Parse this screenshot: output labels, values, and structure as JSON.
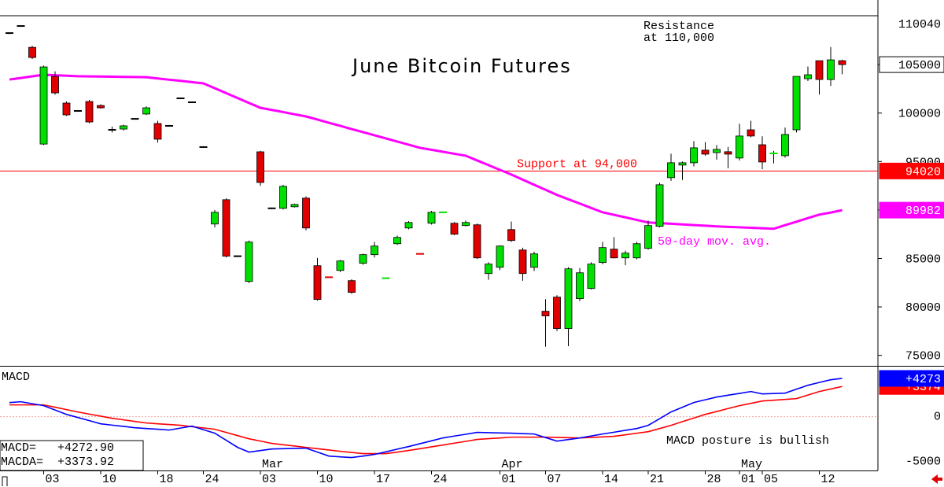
{
  "chart_data": [
    {
      "type": "candlestick",
      "title": "June Bitcoin Futures",
      "open": [
        108250,
        108980,
        106780,
        96800,
        103780,
        101030,
        100220,
        101190,
        100780,
        98270,
        98350,
        99400,
        99900,
        98920,
        98680,
        101520,
        101110,
        96490,
        88550,
        91060,
        85230,
        82630,
        96000,
        90170,
        90170,
        90330,
        91220,
        84250,
        83080,
        83760,
        82710,
        84500,
        85390,
        82940,
        86520,
        88140,
        85490,
        88630,
        89740,
        88630,
        88390,
        88470,
        83440,
        84090,
        87980,
        85870,
        84090,
        79550,
        81010,
        77770,
        80850,
        81900,
        84580,
        85960,
        85060,
        85060,
        86040,
        88310,
        93330,
        94630,
        94870,
        96170,
        95920,
        96010,
        95360,
        98270,
        96730,
        95820,
        95600,
        98270,
        103540,
        105400,
        103460,
        105400
      ],
      "high": [
        108350,
        109050,
        106950,
        104900,
        104300,
        101200,
        100300,
        101350,
        100900,
        98600,
        98800,
        99450,
        100700,
        99200,
        98750,
        101600,
        101200,
        96550,
        90000,
        91200,
        85300,
        86850,
        96100,
        90250,
        92600,
        90650,
        91400,
        85050,
        83120,
        84850,
        82850,
        85500,
        86700,
        83000,
        87350,
        88850,
        85520,
        89900,
        89800,
        88750,
        88900,
        88600,
        84600,
        86350,
        88800,
        86100,
        85700,
        80800,
        81200,
        84100,
        84000,
        84600,
        86700,
        87200,
        85800,
        86700,
        88900,
        92800,
        95800,
        95000,
        97100,
        97000,
        96700,
        96500,
        98900,
        99200,
        97600,
        96100,
        98500,
        103800,
        104800,
        105400,
        106800,
        105500
      ],
      "low": [
        108150,
        108900,
        105570,
        96700,
        101900,
        99700,
        100150,
        98950,
        100450,
        98000,
        98200,
        99350,
        99800,
        96950,
        98600,
        101450,
        101050,
        96400,
        88200,
        85100,
        85150,
        82450,
        92500,
        90100,
        90050,
        90250,
        87900,
        80650,
        83000,
        83600,
        81350,
        84350,
        85100,
        82920,
        86400,
        88000,
        85420,
        88500,
        89700,
        87400,
        88300,
        84950,
        82800,
        83800,
        86700,
        82700,
        83700,
        75900,
        77500,
        75950,
        80600,
        81800,
        84400,
        85000,
        84300,
        84900,
        85900,
        88200,
        93000,
        93100,
        94500,
        95600,
        95200,
        94300,
        95100,
        97500,
        94200,
        94800,
        95400,
        98000,
        103300,
        101900,
        102800,
        104000
      ],
      "close": [
        108250,
        108980,
        105730,
        104760,
        102080,
        99810,
        100220,
        99080,
        100540,
        98270,
        98680,
        99400,
        100540,
        97300,
        98680,
        101520,
        101110,
        96490,
        89760,
        85230,
        85230,
        86690,
        92840,
        90170,
        92440,
        90570,
        88140,
        80770,
        83040,
        84740,
        81500,
        85390,
        86280,
        82980,
        87170,
        88710,
        85450,
        89760,
        89780,
        87500,
        88710,
        85060,
        84420,
        86280,
        86850,
        83440,
        85470,
        79070,
        77770,
        83930,
        83520,
        84420,
        86120,
        85060,
        85550,
        86520,
        88390,
        92600,
        94870,
        94870,
        96410,
        95760,
        96250,
        95760,
        97630,
        97630,
        94950,
        95860,
        97790,
        103780,
        103950,
        103460,
        105490,
        105000
      ],
      "up_color": "#00e000",
      "down_color": "#e00000",
      "flat_color": "#000000",
      "ylim": [
        74000,
        110040
      ],
      "yticks": [
        75000,
        80000,
        85000,
        90000,
        95000,
        100000,
        105000
      ],
      "moving_average": {
        "label": "50-day mov. avg.",
        "color": "#ff00ff",
        "values": [
          103460,
          103620,
          103790,
          103950,
          103900,
          103850,
          103800,
          103780,
          103770,
          103750,
          103730,
          103720,
          103700,
          103570,
          103440,
          103320,
          103190,
          103060,
          102560,
          102050,
          101550,
          101040,
          100540,
          100320,
          100100,
          99870,
          99650,
          99330,
          99000,
          98680,
          98350,
          98030,
          97710,
          97380,
          97060,
          96730,
          96410,
          96210,
          96010,
          95800,
          95600,
          95110,
          94630,
          94140,
          93650,
          93130,
          92600,
          92080,
          91550,
          91100,
          90660,
          90210,
          89760,
          89500,
          89240,
          88970,
          88710,
          88640,
          88580,
          88510,
          88440,
          88380,
          88310,
          88260,
          88210,
          88160,
          88110,
          88060,
          88430,
          88790,
          89160,
          89520,
          89730,
          89982
        ]
      },
      "levels": [
        {
          "value": 110040,
          "color": "#000000",
          "text_lines": [
            "Resistance",
            "at 110,000"
          ]
        },
        {
          "value": 94020,
          "color": "#ff0000",
          "text_lines": [
            "Support at 94,000"
          ]
        }
      ]
    },
    {
      "type": "line",
      "title": "MACD",
      "categories": [
        null,
        null,
        null,
        "03",
        null,
        null,
        null,
        null,
        "10",
        null,
        null,
        null,
        null,
        "18",
        null,
        null,
        null,
        "24",
        null,
        null,
        null,
        null,
        "03",
        null,
        null,
        null,
        null,
        "10",
        null,
        null,
        null,
        null,
        "17",
        null,
        null,
        null,
        null,
        "24",
        null,
        null,
        null,
        null,
        null,
        "01",
        null,
        null,
        null,
        "07",
        null,
        null,
        null,
        null,
        "14",
        null,
        null,
        null,
        "21",
        null,
        null,
        null,
        null,
        "28",
        null,
        null,
        "01",
        null,
        "05",
        null,
        null,
        null,
        null,
        "12",
        null,
        null
      ],
      "months": [
        {
          "value": 22,
          "label": "Mar"
        },
        {
          "value": 43,
          "label": "Apr"
        },
        {
          "value": 64,
          "label": "May"
        }
      ],
      "series": [
        {
          "name": "MACD",
          "color": "#0000ff",
          "readout": "MACD=   +4272.90",
          "end_label": "+4273",
          "values": [
            1580,
            1670,
            1450,
            1230,
            750,
            260,
            -90,
            -440,
            -790,
            -940,
            -1080,
            -1230,
            -1320,
            -1400,
            -1490,
            -1270,
            -1050,
            -1450,
            -1840,
            -2630,
            -3420,
            -3950,
            -3780,
            -3600,
            -3570,
            -3540,
            -3510,
            -3950,
            -4390,
            -4480,
            -4560,
            -4390,
            -4210,
            -3920,
            -3620,
            -3330,
            -3010,
            -2690,
            -2370,
            -2160,
            -1960,
            -1750,
            -1780,
            -1810,
            -1840,
            -1890,
            -1930,
            -2330,
            -2720,
            -2550,
            -2370,
            -2150,
            -1930,
            -1730,
            -1520,
            -1320,
            -960,
            -220,
            530,
            1060,
            1580,
            1890,
            2190,
            2400,
            2600,
            2810,
            2540,
            2590,
            2630,
            3070,
            3510,
            3820,
            4120,
            4272.9
          ]
        },
        {
          "name": "MACDA",
          "color": "#ff0000",
          "readout": "MACDA=  +3373.92",
          "end_label": "+3374",
          "values": [
            1320,
            1320,
            1320,
            1320,
            1060,
            790,
            530,
            290,
            60,
            -180,
            -350,
            -530,
            -700,
            -790,
            -870,
            -960,
            -1110,
            -1250,
            -1400,
            -1750,
            -2110,
            -2460,
            -2720,
            -2980,
            -3130,
            -3270,
            -3420,
            -3570,
            -3710,
            -3860,
            -3990,
            -4120,
            -4120,
            -4120,
            -3950,
            -3770,
            -3570,
            -3360,
            -3160,
            -2950,
            -2750,
            -2540,
            -2450,
            -2370,
            -2280,
            -2280,
            -2280,
            -2280,
            -2310,
            -2340,
            -2370,
            -2310,
            -2250,
            -2190,
            -2020,
            -1840,
            -1670,
            -1320,
            -960,
            -550,
            -150,
            260,
            580,
            910,
            1230,
            1490,
            1750,
            1840,
            1930,
            2020,
            2420,
            2810,
            3090,
            3373.92
          ]
        }
      ],
      "ylim": [
        -6000,
        5500
      ],
      "yticks": [
        -5000,
        0
      ],
      "annotation": "MACD posture is bullish"
    }
  ]
}
